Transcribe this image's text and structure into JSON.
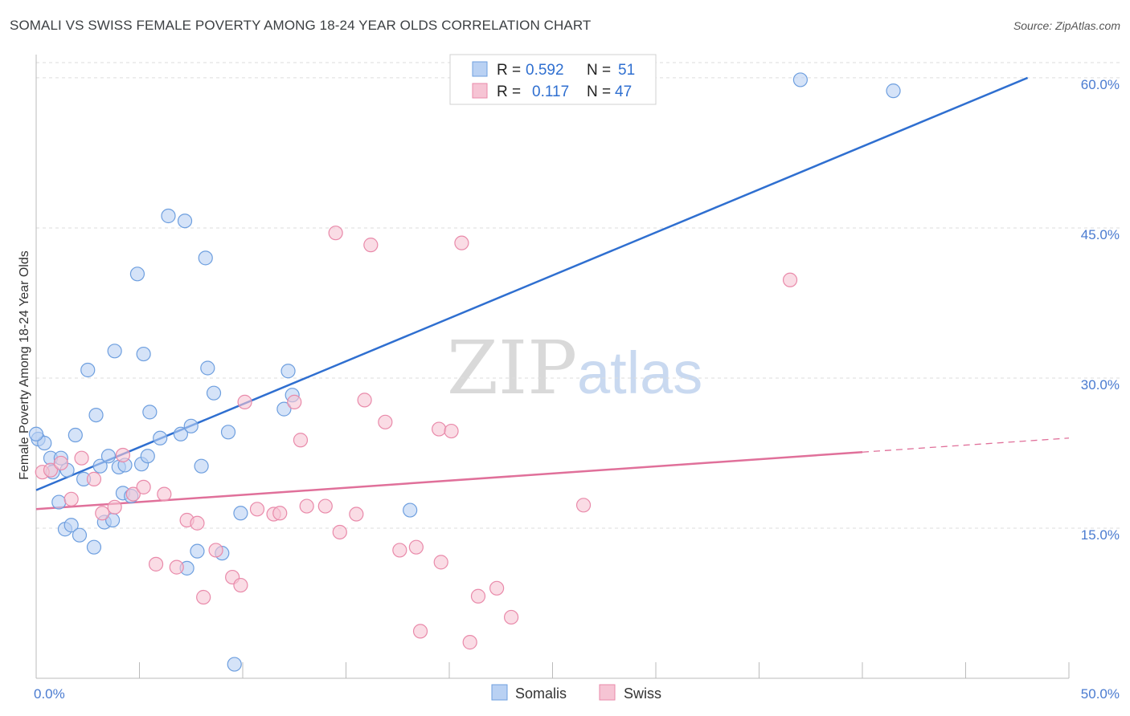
{
  "title": "SOMALI VS SWISS FEMALE POVERTY AMONG 18-24 YEAR OLDS CORRELATION CHART",
  "source": "Source: ZipAtlas.com",
  "watermark": {
    "zip": "ZIP",
    "atlas": "atlas"
  },
  "colors": {
    "somali_fill": "#b9d1f3",
    "somali_stroke": "#6e9fdf",
    "somali_line": "#2f6fd0",
    "swiss_fill": "#f6c4d4",
    "swiss_stroke": "#e98aaa",
    "swiss_line": "#e0709a",
    "axis_label": "#4a7bd0",
    "grid": "#dddddd"
  },
  "legend": {
    "somali": {
      "r_label": "R =",
      "r_value": "0.592",
      "n_label": "N =",
      "n_value": "51"
    },
    "swiss": {
      "r_label": "R =",
      "r_value": "0.117",
      "n_label": "N =",
      "n_value": "47"
    }
  },
  "chart_data": {
    "type": "scatter",
    "title": "SOMALI VS SWISS FEMALE POVERTY AMONG 18-24 YEAR OLDS CORRELATION CHART",
    "xlabel": "",
    "ylabel": "Female Poverty Among 18-24 Year Olds",
    "xlim": [
      0,
      50
    ],
    "ylim": [
      0,
      62
    ],
    "x_tick_labels": [
      "0.0%",
      "50.0%"
    ],
    "y_ticks": [
      15,
      30,
      45,
      60
    ],
    "y_tick_labels": [
      "15.0%",
      "30.0%",
      "45.0%",
      "60.0%"
    ],
    "grid": true,
    "legend_position": "bottom",
    "series": [
      {
        "name": "Somalis",
        "points": [
          [
            0.1,
            23.9
          ],
          [
            0.4,
            23.5
          ],
          [
            0.7,
            22.0
          ],
          [
            0.8,
            20.6
          ],
          [
            1.1,
            17.6
          ],
          [
            1.2,
            22.0
          ],
          [
            1.4,
            14.9
          ],
          [
            1.5,
            20.8
          ],
          [
            1.7,
            15.3
          ],
          [
            1.9,
            24.3
          ],
          [
            2.1,
            14.3
          ],
          [
            2.3,
            19.9
          ],
          [
            2.5,
            30.8
          ],
          [
            2.8,
            13.1
          ],
          [
            2.9,
            26.3
          ],
          [
            3.1,
            21.2
          ],
          [
            3.3,
            15.6
          ],
          [
            3.5,
            22.2
          ],
          [
            3.7,
            15.8
          ],
          [
            3.8,
            32.7
          ],
          [
            4.0,
            21.1
          ],
          [
            4.2,
            18.5
          ],
          [
            4.3,
            21.3
          ],
          [
            4.6,
            18.2
          ],
          [
            4.9,
            40.4
          ],
          [
            5.1,
            21.4
          ],
          [
            5.2,
            32.4
          ],
          [
            5.4,
            22.2
          ],
          [
            5.5,
            26.6
          ],
          [
            6.0,
            24.0
          ],
          [
            6.4,
            46.2
          ],
          [
            7.0,
            24.4
          ],
          [
            7.2,
            45.7
          ],
          [
            7.3,
            11.0
          ],
          [
            7.5,
            25.2
          ],
          [
            7.8,
            12.7
          ],
          [
            8.0,
            21.2
          ],
          [
            8.2,
            42.0
          ],
          [
            8.3,
            31.0
          ],
          [
            8.6,
            28.5
          ],
          [
            9.0,
            12.5
          ],
          [
            9.3,
            24.6
          ],
          [
            9.6,
            1.4
          ],
          [
            9.9,
            16.5
          ],
          [
            12.0,
            26.9
          ],
          [
            12.2,
            30.7
          ],
          [
            12.4,
            28.3
          ],
          [
            18.1,
            16.8
          ],
          [
            37.0,
            59.8
          ],
          [
            41.5,
            58.7
          ],
          [
            0.0,
            24.4
          ]
        ],
        "trend": {
          "x": [
            0.0,
            48.0
          ],
          "y": [
            18.8,
            60.0
          ]
        }
      },
      {
        "name": "Swiss",
        "points": [
          [
            0.3,
            20.6
          ],
          [
            0.7,
            20.8
          ],
          [
            1.2,
            21.5
          ],
          [
            1.7,
            17.9
          ],
          [
            2.2,
            22.0
          ],
          [
            2.8,
            19.9
          ],
          [
            3.2,
            16.5
          ],
          [
            3.8,
            17.1
          ],
          [
            4.2,
            22.3
          ],
          [
            4.7,
            18.4
          ],
          [
            5.2,
            19.1
          ],
          [
            5.8,
            11.4
          ],
          [
            6.2,
            18.4
          ],
          [
            6.8,
            11.1
          ],
          [
            7.3,
            15.8
          ],
          [
            7.8,
            15.5
          ],
          [
            8.1,
            8.1
          ],
          [
            8.7,
            12.8
          ],
          [
            9.5,
            10.1
          ],
          [
            9.9,
            9.3
          ],
          [
            10.1,
            27.6
          ],
          [
            10.7,
            16.9
          ],
          [
            11.5,
            16.4
          ],
          [
            11.8,
            16.5
          ],
          [
            12.5,
            27.6
          ],
          [
            12.8,
            23.8
          ],
          [
            13.1,
            17.2
          ],
          [
            14.0,
            17.2
          ],
          [
            14.5,
            44.5
          ],
          [
            14.7,
            14.6
          ],
          [
            15.5,
            16.4
          ],
          [
            15.9,
            27.8
          ],
          [
            16.2,
            43.3
          ],
          [
            16.9,
            25.6
          ],
          [
            17.6,
            12.8
          ],
          [
            18.4,
            13.1
          ],
          [
            18.6,
            4.7
          ],
          [
            19.5,
            24.9
          ],
          [
            19.6,
            11.6
          ],
          [
            20.1,
            24.7
          ],
          [
            20.6,
            43.5
          ],
          [
            21.0,
            3.6
          ],
          [
            21.4,
            8.2
          ],
          [
            22.3,
            9.0
          ],
          [
            23.0,
            6.1
          ],
          [
            26.5,
            17.3
          ],
          [
            36.5,
            39.8
          ]
        ],
        "trend": {
          "x": [
            0.0,
            40.0
          ],
          "y": [
            16.9,
            22.6
          ]
        },
        "trend_extension": {
          "x": [
            40.0,
            50.0
          ],
          "y": [
            22.6,
            24.0
          ]
        }
      }
    ]
  },
  "bottom_legend": {
    "somali": "Somalis",
    "swiss": "Swiss"
  }
}
